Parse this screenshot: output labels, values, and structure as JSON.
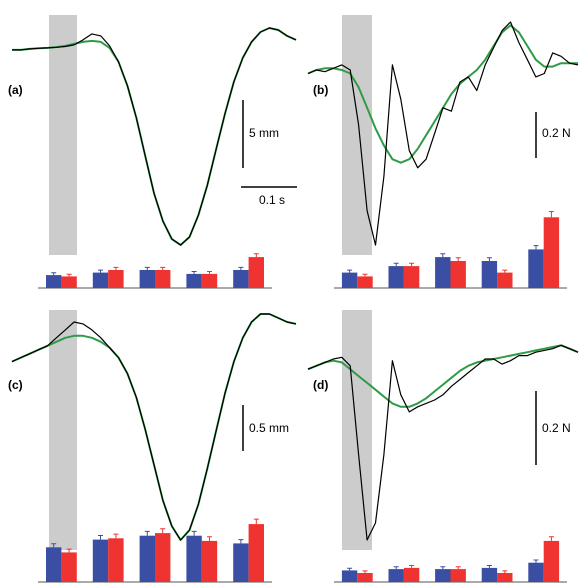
{
  "colors": {
    "recorded": "#000000",
    "fitted": "#2e9c46",
    "shade": "#cccccc",
    "bar_blue": "#3a4fa3",
    "bar_red": "#ee3331",
    "axis": "#555555"
  },
  "chart_data": [
    {
      "id": "a",
      "type": "line",
      "label": "(a)",
      "scale_y": "5 mm",
      "scale_x": "0.1 s",
      "ylim": [
        -1,
        0.12
      ],
      "series": [
        {
          "values": [
            -0.02,
            -0.02,
            -0.015,
            -0.012,
            -0.01,
            -0.007,
            -0.003,
            0.005,
            0.03,
            0.06,
            0.05,
            0.0,
            -0.08,
            -0.2,
            -0.36,
            -0.55,
            -0.74,
            -0.88,
            -0.97,
            -1.0,
            -0.96,
            -0.85,
            -0.7,
            -0.52,
            -0.34,
            -0.18,
            -0.06,
            0.02,
            0.07,
            0.09,
            0.08,
            0.05,
            0.03
          ]
        },
        {
          "values": [
            -0.02,
            -0.02,
            -0.015,
            -0.012,
            -0.01,
            -0.006,
            0.0,
            0.01,
            0.02,
            0.025,
            0.02,
            -0.01,
            -0.08,
            -0.2,
            -0.36,
            -0.55,
            -0.74,
            -0.88,
            -0.97,
            -1.0,
            -0.96,
            -0.85,
            -0.7,
            -0.52,
            -0.34,
            -0.18,
            -0.06,
            0.02,
            0.07,
            0.09,
            0.08,
            0.05,
            0.03
          ]
        }
      ],
      "bars": [
        {
          "blue": 1.0,
          "red": 0.9
        },
        {
          "blue": 1.2,
          "red": 1.4
        },
        {
          "blue": 1.4,
          "red": 1.4
        },
        {
          "blue": 1.1,
          "red": 1.1
        },
        {
          "blue": 1.4,
          "red": 2.4
        }
      ],
      "bars_max": 7
    },
    {
      "id": "b",
      "type": "line",
      "label": "(b)",
      "scale_y": "0.2 N",
      "scale_x": "",
      "ylim": [
        -1,
        0.3
      ],
      "series": [
        {
          "values": [
            0.0,
            0.02,
            0.01,
            0.03,
            0.05,
            0.02,
            -0.3,
            -0.8,
            -1.0,
            -0.6,
            0.05,
            -0.15,
            -0.45,
            -0.55,
            -0.5,
            -0.35,
            -0.2,
            -0.22,
            -0.05,
            -0.02,
            -0.1,
            0.05,
            0.15,
            0.25,
            0.3,
            0.18,
            0.08,
            -0.02,
            0.0,
            0.12,
            0.1,
            0.06,
            0.05
          ]
        },
        {
          "values": [
            0.0,
            0.02,
            0.03,
            0.03,
            0.02,
            0.0,
            -0.08,
            -0.2,
            -0.32,
            -0.42,
            -0.5,
            -0.52,
            -0.5,
            -0.44,
            -0.36,
            -0.28,
            -0.2,
            -0.12,
            -0.06,
            -0.02,
            0.02,
            0.08,
            0.16,
            0.24,
            0.28,
            0.24,
            0.16,
            0.08,
            0.04,
            0.04,
            0.06,
            0.06,
            0.06
          ]
        }
      ],
      "bars": [
        {
          "blue": 1.2,
          "red": 0.9
        },
        {
          "blue": 1.7,
          "red": 1.7
        },
        {
          "blue": 2.4,
          "red": 2.1
        },
        {
          "blue": 2.1,
          "red": 1.2
        },
        {
          "blue": 3.0,
          "red": 5.5
        }
      ],
      "bars_max": 7
    },
    {
      "id": "c",
      "type": "line",
      "label": "(c)",
      "scale_y": "0.5 mm",
      "scale_x": "",
      "ylim": [
        -1,
        0.12
      ],
      "series": [
        {
          "values": [
            -0.1,
            -0.08,
            -0.06,
            -0.04,
            -0.02,
            0.02,
            0.06,
            0.1,
            0.09,
            0.06,
            0.02,
            -0.03,
            -0.08,
            -0.16,
            -0.28,
            -0.44,
            -0.62,
            -0.8,
            -0.93,
            -1.0,
            -0.95,
            -0.82,
            -0.64,
            -0.45,
            -0.26,
            -0.1,
            0.02,
            0.1,
            0.14,
            0.14,
            0.12,
            0.1,
            0.09
          ]
        },
        {
          "values": [
            -0.1,
            -0.08,
            -0.06,
            -0.04,
            -0.02,
            0.0,
            0.02,
            0.03,
            0.03,
            0.02,
            0.0,
            -0.03,
            -0.08,
            -0.16,
            -0.28,
            -0.44,
            -0.62,
            -0.8,
            -0.93,
            -1.0,
            -0.95,
            -0.82,
            -0.64,
            -0.45,
            -0.26,
            -0.1,
            0.02,
            0.1,
            0.14,
            0.14,
            0.12,
            0.1,
            0.09
          ]
        }
      ],
      "bars": [
        {
          "blue": 2.7,
          "red": 2.3
        },
        {
          "blue": 3.3,
          "red": 3.4
        },
        {
          "blue": 3.6,
          "red": 3.8
        },
        {
          "blue": 3.6,
          "red": 3.2
        },
        {
          "blue": 3.0,
          "red": 4.5
        }
      ],
      "bars_max": 7
    },
    {
      "id": "d",
      "type": "line",
      "label": "(d)",
      "scale_y": "0.2 N",
      "scale_x": "",
      "ylim": [
        -1,
        0.3
      ],
      "series": [
        {
          "values": [
            0.0,
            0.02,
            0.04,
            0.06,
            0.07,
            0.02,
            -0.5,
            -1.0,
            -0.9,
            -0.5,
            0.05,
            -0.15,
            -0.25,
            -0.22,
            -0.2,
            -0.18,
            -0.15,
            -0.1,
            -0.06,
            -0.02,
            0.02,
            0.06,
            0.06,
            0.03,
            0.05,
            0.08,
            0.08,
            0.1,
            0.11,
            0.12,
            0.14,
            0.12,
            0.1
          ]
        },
        {
          "values": [
            0.0,
            0.02,
            0.04,
            0.05,
            0.04,
            0.0,
            -0.04,
            -0.08,
            -0.12,
            -0.16,
            -0.2,
            -0.22,
            -0.22,
            -0.2,
            -0.17,
            -0.13,
            -0.09,
            -0.05,
            -0.01,
            0.02,
            0.04,
            0.05,
            0.06,
            0.07,
            0.08,
            0.09,
            0.1,
            0.11,
            0.12,
            0.13,
            0.14,
            0.12,
            0.1
          ]
        }
      ],
      "bars": [
        {
          "blue": 0.9,
          "red": 0.7
        },
        {
          "blue": 1.0,
          "red": 1.1
        },
        {
          "blue": 1.0,
          "red": 1.0
        },
        {
          "blue": 1.1,
          "red": 0.7
        },
        {
          "blue": 1.5,
          "red": 3.2
        }
      ],
      "bars_max": 7
    }
  ]
}
